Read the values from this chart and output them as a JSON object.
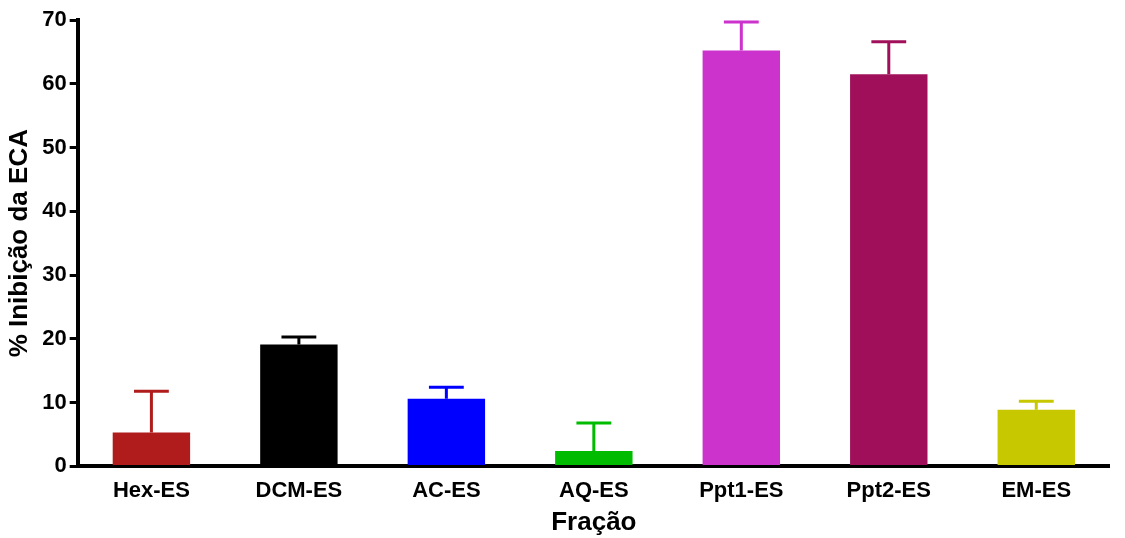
{
  "chart_data": {
    "type": "bar",
    "xlabel": "Fração",
    "ylabel": "% Inibição da ECA",
    "categories": [
      "Hex-ES",
      "DCM-ES",
      "AC-ES",
      "AQ-ES",
      "Ppt1-ES",
      "Ppt2-ES",
      "EM-ES"
    ],
    "values": [
      5.3,
      19.1,
      10.6,
      2.4,
      65.2,
      61.5,
      8.9
    ],
    "errors": [
      [
        5.3,
        11.8
      ],
      [
        19.1,
        20.3
      ],
      [
        10.6,
        12.4
      ],
      [
        2.4,
        6.8
      ],
      [
        65.2,
        69.7
      ],
      [
        61.5,
        66.6
      ],
      [
        8.9,
        10.2
      ]
    ],
    "colors": [
      "#b01c1c",
      "#000000",
      "#0000ff",
      "#00bb00",
      "#cc33cc",
      "#a0105a",
      "#c8c800"
    ],
    "ylim": [
      0,
      70
    ],
    "yticks": [
      0,
      10,
      20,
      30,
      40,
      50,
      60,
      70
    ],
    "grid": false,
    "legend": false
  }
}
